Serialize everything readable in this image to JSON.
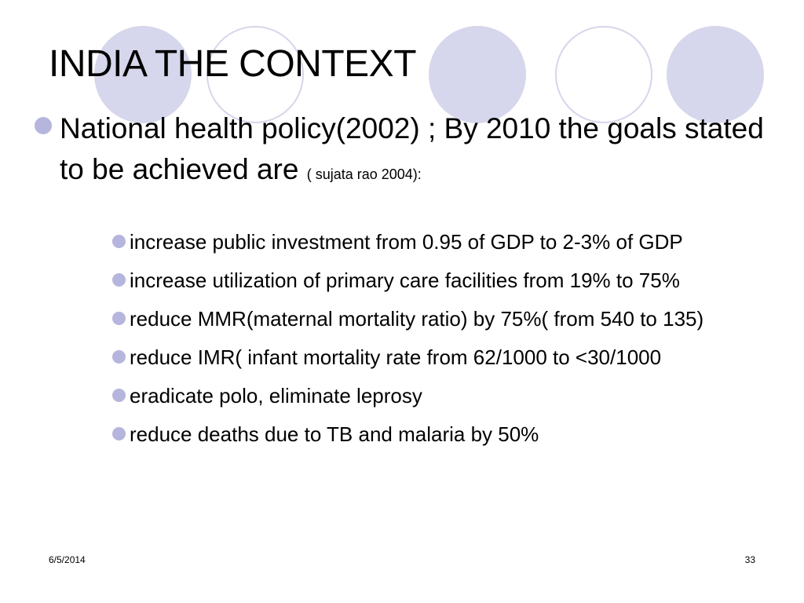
{
  "slide": {
    "title": "INDIA THE CONTEXT",
    "main_point": {
      "text": "National health policy(2002) ; By 2010 the goals stated to be achieved are",
      "citation": "( sujata rao 2004):"
    },
    "sub_points": [
      "increase public investment from 0.95 of GDP to 2-3% of GDP",
      "increase utilization of primary care facilities from 19% to 75%",
      "reduce MMR(maternal mortality ratio) by 75%( from 540 to 135)",
      "reduce IMR( infant mortality rate from 62/1000 to <30/1000",
      "eradicate polo, eliminate leprosy",
      "reduce deaths due to TB and malaria by 50%"
    ],
    "footer": {
      "date": "6/5/2014",
      "page_number": "33"
    }
  },
  "colors": {
    "decoration": "#d6d6ec",
    "bullet": "#b5b5dd"
  }
}
